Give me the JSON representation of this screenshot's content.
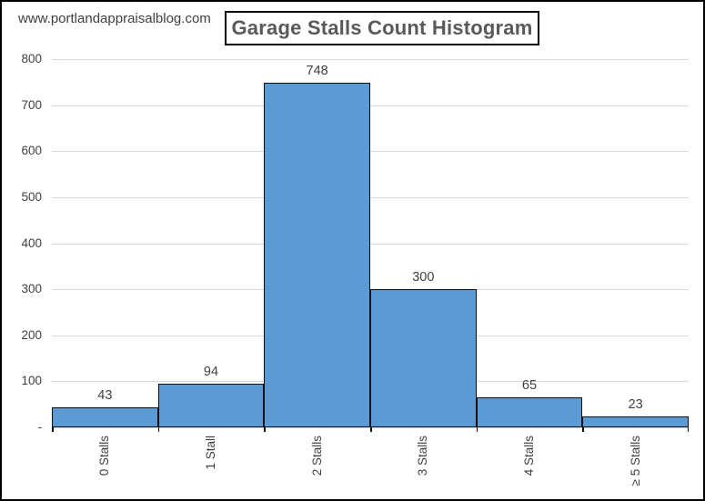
{
  "page": {
    "watermark": "www.portlandappraisalblog.com"
  },
  "chart_data": {
    "type": "bar",
    "subtype": "histogram",
    "title": "Garage Stalls Count Histogram",
    "categories": [
      "0 Stalls",
      "1 Stall",
      "2 Stalls",
      "3 Stalls",
      "4 Stalls",
      "≥ 5 Stalls"
    ],
    "values": [
      43,
      94,
      748,
      300,
      65,
      23
    ],
    "data_labels": [
      "43",
      "94",
      "748",
      "300",
      "65",
      "23"
    ],
    "xlabel": "",
    "ylabel": "",
    "ylim": [
      0,
      800
    ],
    "y_tick_interval": 100,
    "y_ticks": [
      {
        "value": 800,
        "label": "800"
      },
      {
        "value": 700,
        "label": "700"
      },
      {
        "value": 600,
        "label": "600"
      },
      {
        "value": 500,
        "label": "500"
      },
      {
        "value": 400,
        "label": "400"
      },
      {
        "value": 300,
        "label": "300"
      },
      {
        "value": 200,
        "label": "200"
      },
      {
        "value": 100,
        "label": "100"
      },
      {
        "value": 0,
        "label": "-"
      }
    ],
    "grid": "horizontal-only",
    "legend": "none",
    "bar_gap_percent": 0,
    "x_tick_marks": "between-categories",
    "x_label_rotation_degrees": 90,
    "colors": {
      "bar_fill": "#5B9BD5",
      "bar_border": "#0D0D0D",
      "gridline": "#D9D9D9",
      "axis_text": "#3F3F3F",
      "data_label_text": "#404040",
      "title_text": "#595959",
      "title_border": "#000000",
      "watermark_text": "#3F3F3F",
      "frame_border": "#000000",
      "background": "#FFFFFF"
    }
  }
}
